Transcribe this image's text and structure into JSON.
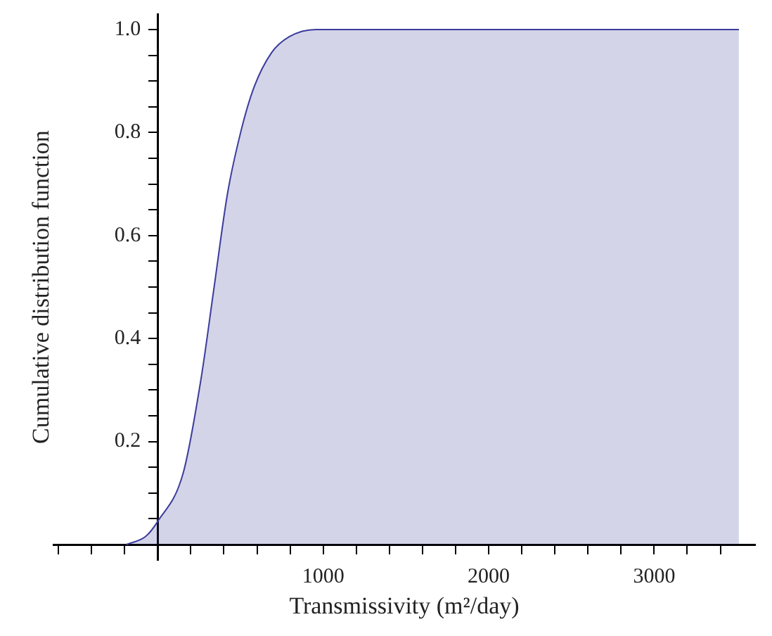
{
  "chart_data": {
    "type": "area",
    "xlabel": "Transmissivity (m²/day)",
    "ylabel": "Cumulative distribution function",
    "series": [
      {
        "color": "#3c3c9c",
        "x": [
          -190,
          -72,
          0,
          155,
          261,
          341,
          421,
          501,
          581,
          688,
          795,
          955,
          1200,
          2000,
          3000,
          3512
        ],
        "values": [
          0,
          0.016,
          0.045,
          0.14,
          0.32,
          0.5,
          0.68,
          0.8,
          0.887,
          0.955,
          0.986,
          1.0,
          1.0,
          1.0,
          1.0,
          1.0
        ]
      }
    ],
    "xlim": [
      -630,
      3610
    ],
    "ylim": [
      -0.03,
      1.03
    ],
    "xticks": [
      {
        "value": -600,
        "label": null
      },
      {
        "value": -400,
        "label": null
      },
      {
        "value": -200,
        "label": null
      },
      {
        "value": 200,
        "label": null
      },
      {
        "value": 400,
        "label": null
      },
      {
        "value": 600,
        "label": null
      },
      {
        "value": 800,
        "label": null
      },
      1000,
      {
        "value": 1200,
        "label": null
      },
      {
        "value": 1400,
        "label": null
      },
      {
        "value": 1600,
        "label": null
      },
      {
        "value": 1800,
        "label": null
      },
      2000,
      {
        "value": 2200,
        "label": null
      },
      {
        "value": 2400,
        "label": null
      },
      {
        "value": 2600,
        "label": null
      },
      {
        "value": 2800,
        "label": null
      },
      3000,
      {
        "value": 3200,
        "label": null
      },
      {
        "value": 3400,
        "label": null
      }
    ],
    "yticks": [
      {
        "value": 0.05,
        "label": null
      },
      {
        "value": 0.1,
        "label": null
      },
      {
        "value": 0.15,
        "label": null
      },
      0.2,
      {
        "value": 0.25,
        "label": null
      },
      {
        "value": 0.3,
        "label": null
      },
      {
        "value": 0.35,
        "label": null
      },
      0.4,
      {
        "value": 0.45,
        "label": null
      },
      {
        "value": 0.5,
        "label": null
      },
      {
        "value": 0.55,
        "label": null
      },
      0.6,
      {
        "value": 0.65,
        "label": null
      },
      {
        "value": 0.7,
        "label": null
      },
      {
        "value": 0.75,
        "label": null
      },
      0.8,
      {
        "value": 0.85,
        "label": null
      },
      {
        "value": 0.9,
        "label": null
      },
      {
        "value": 0.95,
        "label": null
      },
      {
        "value": 1,
        "label": "1.0"
      }
    ],
    "grid": false,
    "legend": false
  }
}
